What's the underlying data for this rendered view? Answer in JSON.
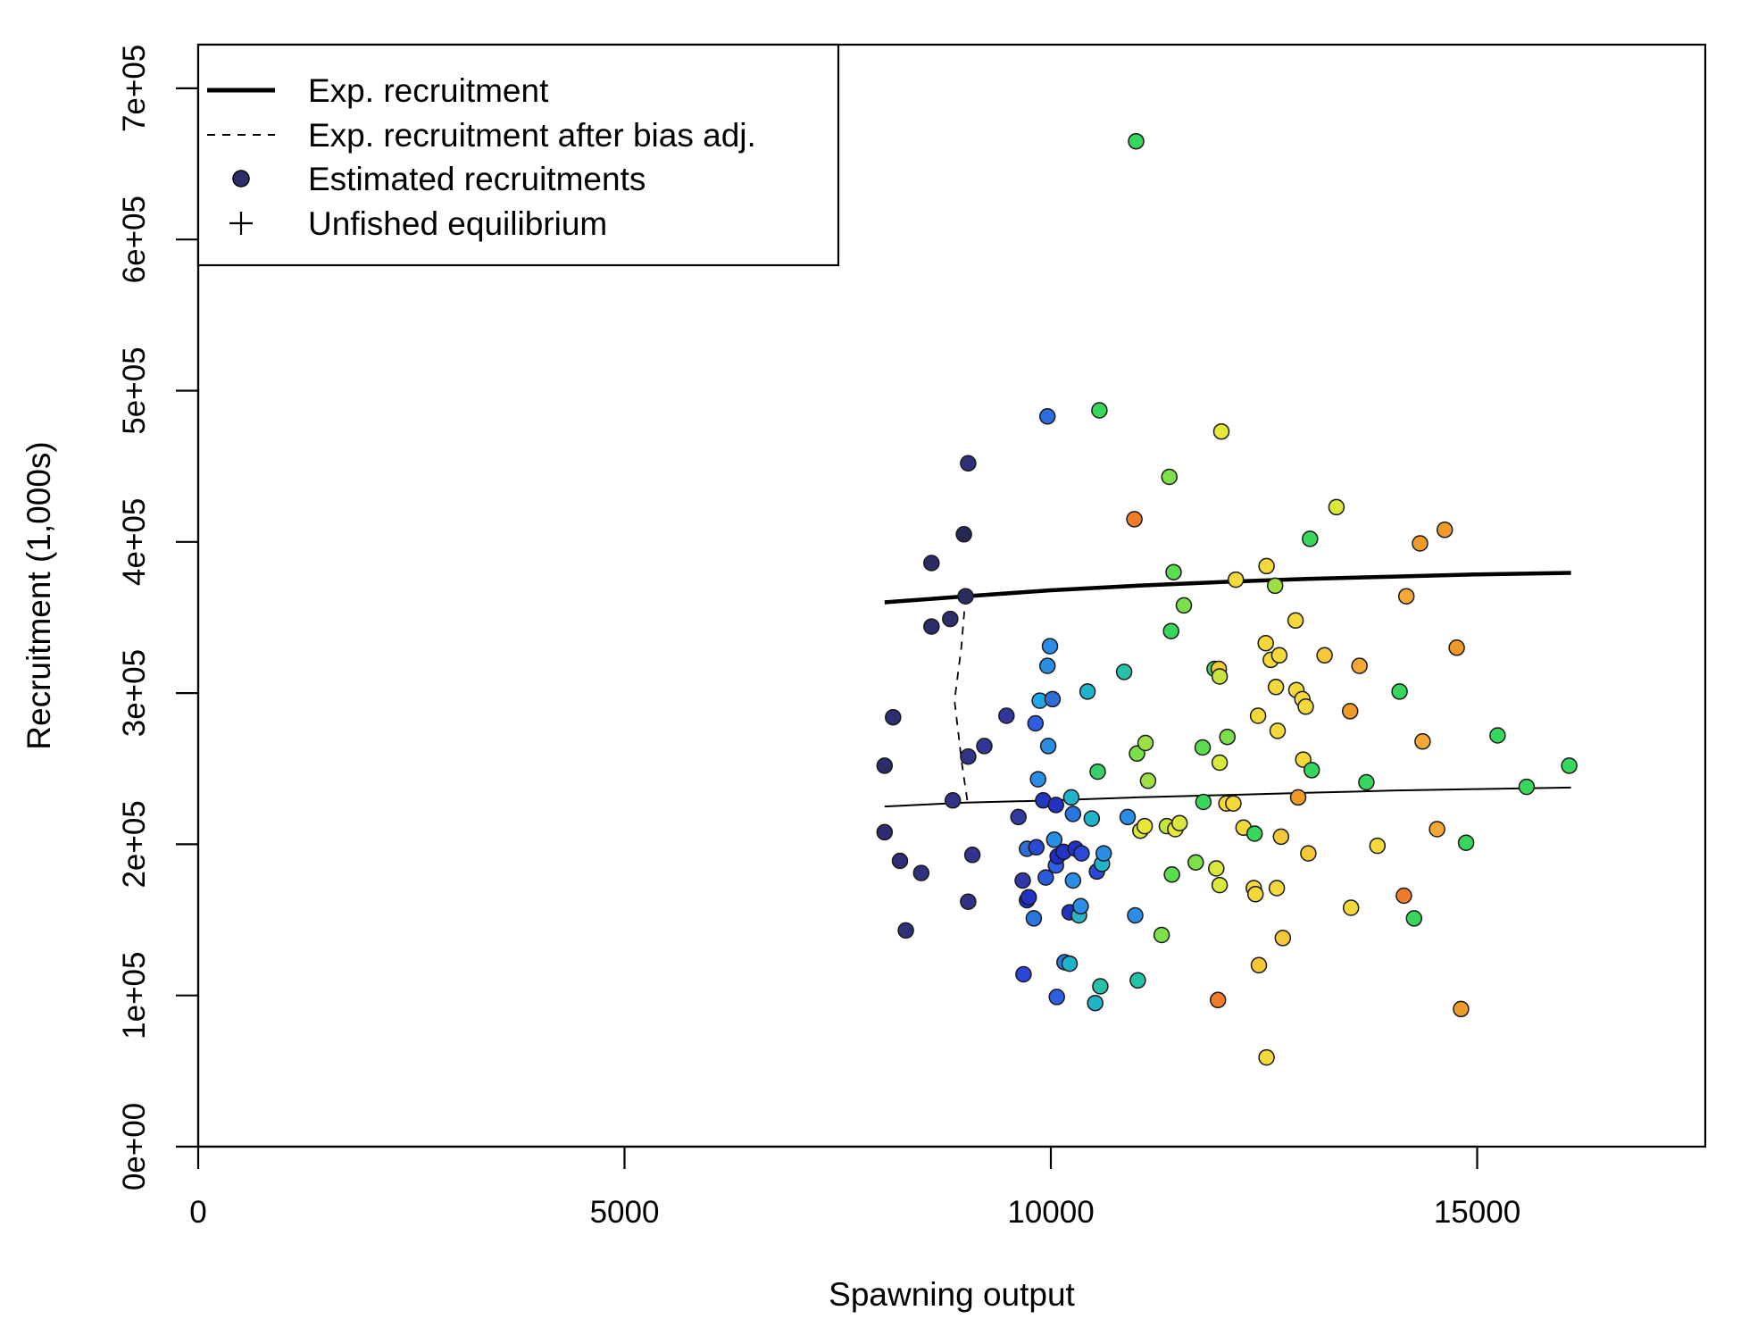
{
  "chart_data": {
    "type": "scatter",
    "xlabel": "Spawning output",
    "ylabel": "Recruitment (1,000s)",
    "xlim": [
      0,
      17700
    ],
    "ylim": [
      0,
      730000
    ],
    "x_ticks": [
      0,
      5000,
      10000,
      15000
    ],
    "x_tick_labels": [
      "0",
      "5000",
      "10000",
      "15000"
    ],
    "y_ticks": [
      0,
      100000,
      200000,
      300000,
      400000,
      500000,
      600000,
      700000
    ],
    "y_tick_labels": [
      "0e+00",
      "1e+05",
      "2e+05",
      "3e+05",
      "4e+05",
      "5e+05",
      "6e+05",
      "7e+05"
    ],
    "grid": false,
    "legend": {
      "position": "top-left",
      "entries": [
        {
          "label": "Exp. recruitment",
          "symbol": "thick-line"
        },
        {
          "label": "Exp. recruitment after bias adj.",
          "symbol": "dashed-line"
        },
        {
          "label": "Estimated recruitments",
          "symbol": "filled-circle"
        },
        {
          "label": "Unfished equilibrium",
          "symbol": "plus"
        }
      ]
    },
    "lines": [
      {
        "name": "Exp. recruitment",
        "style": "solid-thick",
        "points": [
          [
            8050,
            360000
          ],
          [
            9000,
            364000
          ],
          [
            10000,
            368000
          ],
          [
            11000,
            371000
          ],
          [
            12000,
            373500
          ],
          [
            13000,
            375500
          ],
          [
            14000,
            377000
          ],
          [
            15000,
            378500
          ],
          [
            16100,
            379500
          ]
        ]
      },
      {
        "name": "Exp. recruitment after bias adj.",
        "style": "dashed",
        "points": [
          [
            9000,
            364000
          ],
          [
            8950,
            330000
          ],
          [
            8870,
            295000
          ],
          [
            8960,
            252000
          ],
          [
            9020,
            229000
          ]
        ]
      },
      {
        "name": "Exp. recruitment after bias adj. (solid)",
        "style": "solid-thin",
        "points": [
          [
            8050,
            225000
          ],
          [
            9000,
            227500
          ],
          [
            10000,
            229000
          ],
          [
            11000,
            231000
          ],
          [
            12000,
            232500
          ],
          [
            13000,
            234000
          ],
          [
            14000,
            235500
          ],
          [
            15000,
            236500
          ],
          [
            16100,
            237500
          ]
        ]
      }
    ],
    "points": [
      {
        "x": 8050,
        "y": 252000,
        "color": "#2a2d6a"
      },
      {
        "x": 8050,
        "y": 208000,
        "color": "#2b2d6e"
      },
      {
        "x": 8150,
        "y": 284000,
        "color": "#2c2f72"
      },
      {
        "x": 8230,
        "y": 189000,
        "color": "#2d3076"
      },
      {
        "x": 8300,
        "y": 143000,
        "color": "#2e3179"
      },
      {
        "x": 8480,
        "y": 181000,
        "color": "#2e327c"
      },
      {
        "x": 8600,
        "y": 386000,
        "color": "#2a2c63"
      },
      {
        "x": 8600,
        "y": 344000,
        "color": "#2b2d68"
      },
      {
        "x": 8820,
        "y": 349000,
        "color": "#2c2e6c"
      },
      {
        "x": 8850,
        "y": 229000,
        "color": "#2f3383"
      },
      {
        "x": 8980,
        "y": 405000,
        "color": "#262850"
      },
      {
        "x": 9000,
        "y": 364000,
        "color": "#2a2b5e"
      },
      {
        "x": 9030,
        "y": 452000,
        "color": "#2e3179"
      },
      {
        "x": 9030,
        "y": 258000,
        "color": "#30348a"
      },
      {
        "x": 9030,
        "y": 162000,
        "color": "#2f3383"
      },
      {
        "x": 9080,
        "y": 193000,
        "color": "#313590"
      },
      {
        "x": 9220,
        "y": 265000,
        "color": "#323696"
      },
      {
        "x": 9480,
        "y": 285000,
        "color": "#32389a"
      },
      {
        "x": 9620,
        "y": 218000,
        "color": "#3339a1"
      },
      {
        "x": 9670,
        "y": 176000,
        "color": "#3138a6"
      },
      {
        "x": 9720,
        "y": 163000,
        "color": "#1d31c8"
      },
      {
        "x": 9680,
        "y": 114000,
        "color": "#2e46d8"
      },
      {
        "x": 9740,
        "y": 165000,
        "color": "#2233c4"
      },
      {
        "x": 9720,
        "y": 197000,
        "color": "#2f6ed8"
      },
      {
        "x": 9800,
        "y": 151000,
        "color": "#2b76de"
      },
      {
        "x": 9820,
        "y": 280000,
        "color": "#2d5fe0"
      },
      {
        "x": 9830,
        "y": 198000,
        "color": "#2a4ad6"
      },
      {
        "x": 9850,
        "y": 243000,
        "color": "#2a8ee6"
      },
      {
        "x": 9870,
        "y": 295000,
        "color": "#22a8e6"
      },
      {
        "x": 9910,
        "y": 229000,
        "color": "#2437c0"
      },
      {
        "x": 9940,
        "y": 178000,
        "color": "#2d59dc"
      },
      {
        "x": 9960,
        "y": 318000,
        "color": "#2a8ee6"
      },
      {
        "x": 9960,
        "y": 483000,
        "color": "#2c6ee0"
      },
      {
        "x": 9970,
        "y": 265000,
        "color": "#2a8ee6"
      },
      {
        "x": 9990,
        "y": 331000,
        "color": "#2a8ee6"
      },
      {
        "x": 10020,
        "y": 296000,
        "color": "#2f6ed8"
      },
      {
        "x": 10040,
        "y": 203000,
        "color": "#2a8ee6"
      },
      {
        "x": 10060,
        "y": 226000,
        "color": "#2233c4"
      },
      {
        "x": 10060,
        "y": 186000,
        "color": "#2f5fe2"
      },
      {
        "x": 10070,
        "y": 99000,
        "color": "#2f5fe2"
      },
      {
        "x": 10080,
        "y": 192000,
        "color": "#1d2bcc"
      },
      {
        "x": 10150,
        "y": 195000,
        "color": "#2233c4"
      },
      {
        "x": 10160,
        "y": 122000,
        "color": "#2b76de"
      },
      {
        "x": 10220,
        "y": 121000,
        "color": "#20b3c9"
      },
      {
        "x": 10220,
        "y": 155000,
        "color": "#2233c4"
      },
      {
        "x": 10240,
        "y": 231000,
        "color": "#20b3c9"
      },
      {
        "x": 10260,
        "y": 176000,
        "color": "#2a8ee6"
      },
      {
        "x": 10260,
        "y": 220000,
        "color": "#2b76de"
      },
      {
        "x": 10290,
        "y": 197000,
        "color": "#2233c4"
      },
      {
        "x": 10330,
        "y": 153000,
        "color": "#2fb2c4"
      },
      {
        "x": 10350,
        "y": 159000,
        "color": "#2a8ee6"
      },
      {
        "x": 10360,
        "y": 194000,
        "color": "#2a4ad6"
      },
      {
        "x": 10430,
        "y": 301000,
        "color": "#20b3c9"
      },
      {
        "x": 10480,
        "y": 217000,
        "color": "#20b3c9"
      },
      {
        "x": 10520,
        "y": 95000,
        "color": "#20b3c9"
      },
      {
        "x": 10540,
        "y": 182000,
        "color": "#2a4ad6"
      },
      {
        "x": 10550,
        "y": 248000,
        "color": "#37cf6c"
      },
      {
        "x": 10570,
        "y": 487000,
        "color": "#37d65c"
      },
      {
        "x": 10580,
        "y": 106000,
        "color": "#25c2a8"
      },
      {
        "x": 10600,
        "y": 187000,
        "color": "#20b3c9"
      },
      {
        "x": 10620,
        "y": 194000,
        "color": "#2a8ee6"
      },
      {
        "x": 10860,
        "y": 314000,
        "color": "#25c2a8"
      },
      {
        "x": 10900,
        "y": 218000,
        "color": "#2a8ee6"
      },
      {
        "x": 10980,
        "y": 415000,
        "color": "#f07c2a"
      },
      {
        "x": 10990,
        "y": 153000,
        "color": "#2a8ee6"
      },
      {
        "x": 11000,
        "y": 665000,
        "color": "#37d65c"
      },
      {
        "x": 11010,
        "y": 260000,
        "color": "#7be04a"
      },
      {
        "x": 11020,
        "y": 110000,
        "color": "#25c2a8"
      },
      {
        "x": 11050,
        "y": 209000,
        "color": "#d9e83a"
      },
      {
        "x": 11100,
        "y": 212000,
        "color": "#e8e838"
      },
      {
        "x": 11110,
        "y": 267000,
        "color": "#9ee044"
      },
      {
        "x": 11140,
        "y": 242000,
        "color": "#9ee044"
      },
      {
        "x": 11300,
        "y": 140000,
        "color": "#7be04a"
      },
      {
        "x": 11360,
        "y": 212000,
        "color": "#c6e43c"
      },
      {
        "x": 11390,
        "y": 443000,
        "color": "#7be04a"
      },
      {
        "x": 11410,
        "y": 341000,
        "color": "#37d65c"
      },
      {
        "x": 11420,
        "y": 180000,
        "color": "#5cdc50"
      },
      {
        "x": 11440,
        "y": 380000,
        "color": "#5cdc50"
      },
      {
        "x": 11460,
        "y": 210000,
        "color": "#e8e838"
      },
      {
        "x": 11510,
        "y": 214000,
        "color": "#d9e83a"
      },
      {
        "x": 11560,
        "y": 358000,
        "color": "#7be04a"
      },
      {
        "x": 11700,
        "y": 188000,
        "color": "#7be04a"
      },
      {
        "x": 11780,
        "y": 264000,
        "color": "#5cdc50"
      },
      {
        "x": 11790,
        "y": 228000,
        "color": "#37d65c"
      },
      {
        "x": 11920,
        "y": 316000,
        "color": "#37d65c"
      },
      {
        "x": 11940,
        "y": 184000,
        "color": "#d9e83a"
      },
      {
        "x": 11960,
        "y": 97000,
        "color": "#f07c2a"
      },
      {
        "x": 11970,
        "y": 316000,
        "color": "#f5c83a"
      },
      {
        "x": 11980,
        "y": 311000,
        "color": "#c6e43c"
      },
      {
        "x": 11980,
        "y": 254000,
        "color": "#d9e83a"
      },
      {
        "x": 11980,
        "y": 173000,
        "color": "#d9e83a"
      },
      {
        "x": 12000,
        "y": 473000,
        "color": "#e8e838"
      },
      {
        "x": 12060,
        "y": 227000,
        "color": "#f5d83a"
      },
      {
        "x": 12070,
        "y": 271000,
        "color": "#7be04a"
      },
      {
        "x": 12140,
        "y": 227000,
        "color": "#f5d83a"
      },
      {
        "x": 12170,
        "y": 375000,
        "color": "#f5d83a"
      },
      {
        "x": 12260,
        "y": 211000,
        "color": "#f5d83a"
      },
      {
        "x": 12380,
        "y": 171000,
        "color": "#f5d83a"
      },
      {
        "x": 12390,
        "y": 207000,
        "color": "#37d65c"
      },
      {
        "x": 12400,
        "y": 167000,
        "color": "#f5d83a"
      },
      {
        "x": 12430,
        "y": 285000,
        "color": "#f5d83a"
      },
      {
        "x": 12440,
        "y": 120000,
        "color": "#f5c83a"
      },
      {
        "x": 12520,
        "y": 333000,
        "color": "#f5d83a"
      },
      {
        "x": 12530,
        "y": 384000,
        "color": "#f5d83a"
      },
      {
        "x": 12530,
        "y": 59000,
        "color": "#f5d83a"
      },
      {
        "x": 12580,
        "y": 322000,
        "color": "#f5d83a"
      },
      {
        "x": 12630,
        "y": 371000,
        "color": "#9ee044"
      },
      {
        "x": 12640,
        "y": 304000,
        "color": "#f5d83a"
      },
      {
        "x": 12650,
        "y": 171000,
        "color": "#f5d83a"
      },
      {
        "x": 12660,
        "y": 275000,
        "color": "#f5d83a"
      },
      {
        "x": 12680,
        "y": 325000,
        "color": "#f5d83a"
      },
      {
        "x": 12700,
        "y": 205000,
        "color": "#f5c83a"
      },
      {
        "x": 12720,
        "y": 138000,
        "color": "#f5c83a"
      },
      {
        "x": 12870,
        "y": 348000,
        "color": "#f5d83a"
      },
      {
        "x": 12880,
        "y": 302000,
        "color": "#f5d83a"
      },
      {
        "x": 12900,
        "y": 231000,
        "color": "#f09a2a"
      },
      {
        "x": 12950,
        "y": 296000,
        "color": "#f5d83a"
      },
      {
        "x": 12960,
        "y": 256000,
        "color": "#f5d83a"
      },
      {
        "x": 12990,
        "y": 291000,
        "color": "#f5d83a"
      },
      {
        "x": 13020,
        "y": 194000,
        "color": "#f5c83a"
      },
      {
        "x": 13040,
        "y": 402000,
        "color": "#37d65c"
      },
      {
        "x": 13060,
        "y": 249000,
        "color": "#37d65c"
      },
      {
        "x": 13210,
        "y": 325000,
        "color": "#f5c83a"
      },
      {
        "x": 13350,
        "y": 423000,
        "color": "#d9e83a"
      },
      {
        "x": 13510,
        "y": 288000,
        "color": "#f09a2a"
      },
      {
        "x": 13520,
        "y": 158000,
        "color": "#f5d83a"
      },
      {
        "x": 13620,
        "y": 318000,
        "color": "#f5a836"
      },
      {
        "x": 13700,
        "y": 241000,
        "color": "#37d65c"
      },
      {
        "x": 13830,
        "y": 199000,
        "color": "#f5d83a"
      },
      {
        "x": 14090,
        "y": 301000,
        "color": "#37d65c"
      },
      {
        "x": 14140,
        "y": 166000,
        "color": "#f07c2a"
      },
      {
        "x": 14170,
        "y": 364000,
        "color": "#f5a836"
      },
      {
        "x": 14260,
        "y": 151000,
        "color": "#37d65c"
      },
      {
        "x": 14330,
        "y": 399000,
        "color": "#f09a2a"
      },
      {
        "x": 14360,
        "y": 268000,
        "color": "#f5a836"
      },
      {
        "x": 14530,
        "y": 210000,
        "color": "#f5a836"
      },
      {
        "x": 14620,
        "y": 408000,
        "color": "#f09a2a"
      },
      {
        "x": 14760,
        "y": 330000,
        "color": "#f09a2a"
      },
      {
        "x": 14810,
        "y": 91000,
        "color": "#f09a2a"
      },
      {
        "x": 14870,
        "y": 201000,
        "color": "#37d65c"
      },
      {
        "x": 15240,
        "y": 272000,
        "color": "#37d65c"
      },
      {
        "x": 15580,
        "y": 238000,
        "color": "#37d65c"
      },
      {
        "x": 16080,
        "y": 252000,
        "color": "#37d65c"
      }
    ]
  }
}
